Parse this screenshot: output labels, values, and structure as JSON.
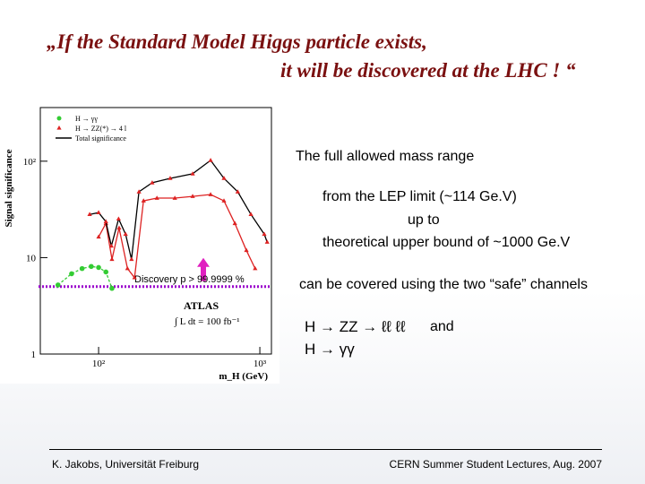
{
  "title": {
    "line1": "„If the Standard Model Higgs particle exists,",
    "line2": "it will be discovered at the LHC  ! “"
  },
  "text": {
    "range": "The full allowed mass range",
    "lep": "from the LEP limit      (~114 Ge.V)",
    "upto": "up to",
    "upper": "theoretical upper bound of   ~1000 Ge.V",
    "covered": "can be covered using the two “safe” channels",
    "ch1": "H → ZZ → ℓℓ ℓℓ",
    "and": "and",
    "ch2": "H → γγ"
  },
  "footer": {
    "left": "K. Jakobs,  Universität Freiburg",
    "right": "CERN Summer Student Lectures,  Aug. 2007"
  },
  "chart_data": {
    "type": "line",
    "ylabel": "Signal significance",
    "xlabel": "m_H (GeV)",
    "xlog": true,
    "ylog": true,
    "xlim": [
      43.5,
      1180
    ],
    "ylim": [
      1,
      360
    ],
    "xticks": [
      {
        "value": 100,
        "label": "10²"
      },
      {
        "value": 1000,
        "label": "10³"
      }
    ],
    "yticks": [
      1,
      10,
      {
        "value": 100,
        "label": "10²"
      }
    ],
    "annotations": {
      "experiment": "ATLAS",
      "lumi": "∫ L dt = 100 fb⁻¹"
    },
    "threshold": {
      "label": "Discovery   p > 99.9999 %",
      "value": 5,
      "color": "#9900cc"
    },
    "series": [
      {
        "name": "H → γγ",
        "color": "#33cc33",
        "x": [
          56,
          68,
          79,
          90,
          100,
          111,
          121
        ],
        "values": [
          5.2,
          6.8,
          7.7,
          8.1,
          7.9,
          7.1,
          4.8
        ]
      },
      {
        "name": "H → ZZ(*) → 4 l",
        "color": "#dd2222",
        "x": [
          100,
          111,
          121,
          134,
          151,
          167,
          190,
          230,
          297,
          383,
          495,
          599,
          700,
          825,
          935
        ],
        "values": [
          16.4,
          22.6,
          9.6,
          20.3,
          7.7,
          6.2,
          38.8,
          41.4,
          41.4,
          43.2,
          45.1,
          38.8,
          22.6,
          11.9,
          7.7
        ]
      },
      {
        "name": "Total significance",
        "color": "#000000",
        "x": [
          88,
          100,
          111,
          120,
          133,
          147,
          160,
          178,
          215,
          278,
          383,
          495,
          599,
          729,
          880,
          1065,
          1110
        ],
        "values": [
          28.1,
          29.3,
          23.6,
          13.2,
          25.2,
          17.5,
          9.6,
          48.1,
          59.7,
          66.4,
          74,
          102,
          66.4,
          48.1,
          28.1,
          17.5,
          14.5
        ]
      }
    ]
  }
}
